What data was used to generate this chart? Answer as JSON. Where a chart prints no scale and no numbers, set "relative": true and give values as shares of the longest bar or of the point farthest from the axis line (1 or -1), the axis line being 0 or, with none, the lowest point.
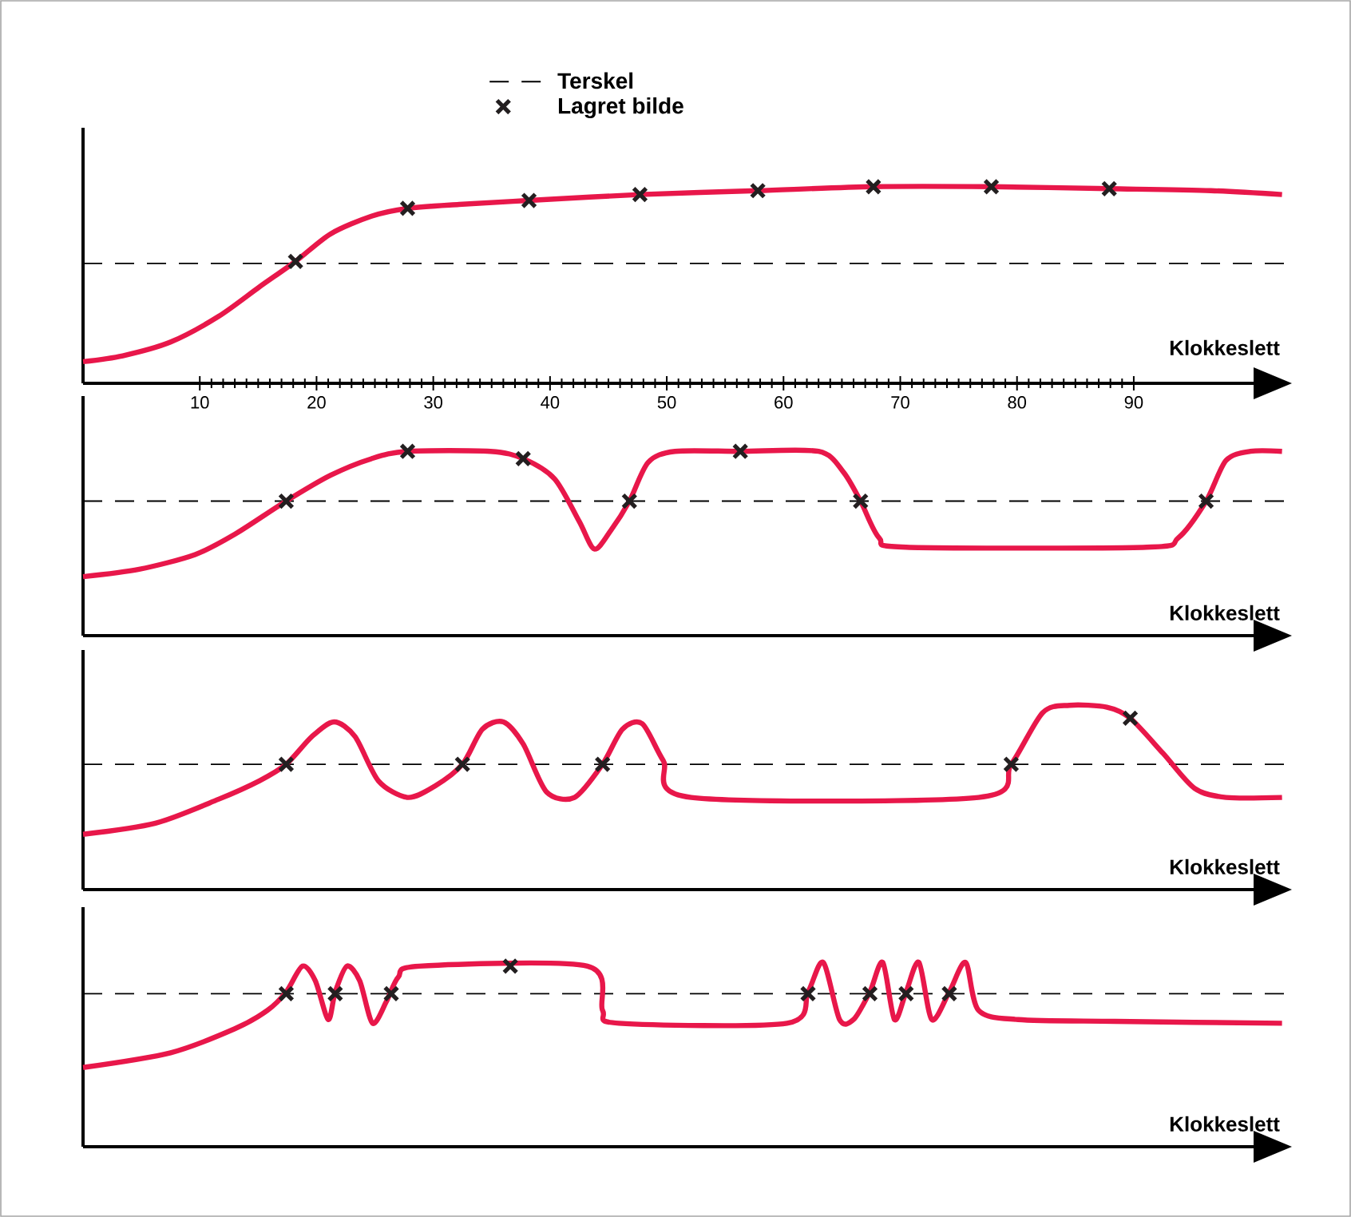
{
  "chart_data": [
    {
      "type": "line",
      "relative": true,
      "xlabel": "Klokkeslett",
      "xlim": [
        0,
        103
      ],
      "xticks": [
        10,
        20,
        30,
        40,
        50,
        60,
        70,
        80,
        90
      ],
      "tick_labels": "x",
      "legend": "top",
      "ref_lines": [
        {
          "axis": "y",
          "value": 0.61,
          "label": "Terskel",
          "line_style": "dashed",
          "color": "#000000"
        }
      ],
      "series": [
        {
          "color": "#e8174a",
          "x": [
            0,
            3.4,
            7.5,
            11.6,
            15.1,
            18.2,
            21.2,
            24.7,
            27.8,
            32.2,
            38.2,
            47.7,
            57.8,
            67.7,
            77.8,
            87.9,
            96.6,
            102.7
          ],
          "values": [
            0.11,
            0.14,
            0.21,
            0.34,
            0.49,
            0.62,
            0.76,
            0.85,
            0.89,
            0.91,
            0.93,
            0.96,
            0.98,
            1.0,
            1.0,
            0.99,
            0.98,
            0.96
          ]
        },
        {
          "type": "scatter",
          "name": "Lagret bilde",
          "color": "#231f20",
          "marker": "cross",
          "x": [
            18.2,
            27.8,
            38.2,
            47.7,
            57.8,
            67.7,
            77.8,
            87.9
          ],
          "values": [
            0.62,
            0.89,
            0.93,
            0.96,
            0.98,
            1.0,
            1.0,
            0.99
          ]
        }
      ]
    },
    {
      "type": "line",
      "relative": true,
      "xlabel": "Klokkeslett",
      "xlim": [
        0,
        103
      ],
      "tick_labels": false,
      "ref_lines": [
        {
          "axis": "y",
          "value": 0.73,
          "line_style": "dashed",
          "color": "#000000"
        }
      ],
      "series": [
        {
          "color": "#e8174a",
          "x": [
            0,
            4.8,
            9.6,
            13.0,
            17.4,
            21.2,
            24.7,
            27.8,
            34.9,
            37.7,
            40.4,
            42.5,
            43.8,
            45.2,
            46.8,
            48.4,
            50.7,
            56.3,
            63.0,
            65.1,
            66.6,
            68.2,
            70.5,
            91.1,
            93.8,
            96.2,
            97.9,
            100.0,
            102.7
          ],
          "values": [
            0.32,
            0.36,
            0.44,
            0.55,
            0.73,
            0.87,
            0.96,
            1.0,
            1.0,
            0.96,
            0.85,
            0.62,
            0.47,
            0.57,
            0.73,
            0.94,
            1.0,
            1.0,
            1.0,
            0.89,
            0.73,
            0.53,
            0.48,
            0.48,
            0.53,
            0.73,
            0.95,
            1.0,
            1.0
          ]
        },
        {
          "type": "scatter",
          "color": "#231f20",
          "marker": "cross",
          "x": [
            17.4,
            27.8,
            37.7,
            46.8,
            56.3,
            66.6,
            96.2
          ],
          "values": [
            0.73,
            1.0,
            0.96,
            0.73,
            1.0,
            0.73,
            0.73
          ]
        }
      ]
    },
    {
      "type": "line",
      "relative": true,
      "xlabel": "Klokkeslett",
      "xlim": [
        0,
        103
      ],
      "tick_labels": false,
      "ref_lines": [
        {
          "axis": "y",
          "value": 0.68,
          "line_style": "dashed",
          "color": "#000000"
        }
      ],
      "series": [
        {
          "color": "#e8174a",
          "x": [
            0,
            6.2,
            11.6,
            15.1,
            17.4,
            19.6,
            21.5,
            23.3,
            25.3,
            27.8,
            30.1,
            32.5,
            34.2,
            36.0,
            37.7,
            39.7,
            42.1,
            44.5,
            46.2,
            47.9,
            49.7,
            52.1,
            76.7,
            79.5,
            82.2,
            84.5,
            87.7,
            89.7,
            92.5,
            95.2,
            97.9,
            102.7
          ],
          "values": [
            0.3,
            0.36,
            0.49,
            0.59,
            0.68,
            0.83,
            0.91,
            0.83,
            0.59,
            0.5,
            0.56,
            0.68,
            0.87,
            0.91,
            0.79,
            0.53,
            0.5,
            0.68,
            0.87,
            0.9,
            0.7,
            0.5,
            0.5,
            0.68,
            0.96,
            1.0,
            0.99,
            0.93,
            0.74,
            0.55,
            0.5,
            0.5
          ]
        },
        {
          "type": "scatter",
          "color": "#231f20",
          "marker": "cross",
          "x": [
            17.4,
            32.5,
            44.5,
            79.5,
            89.7
          ],
          "values": [
            0.68,
            0.68,
            0.68,
            0.68,
            0.93
          ]
        }
      ]
    },
    {
      "type": "line",
      "relative": true,
      "xlabel": "Klokkeslett",
      "xlim": [
        0,
        103
      ],
      "tick_labels": false,
      "ref_lines": [
        {
          "axis": "y",
          "value": 0.83,
          "line_style": "dashed",
          "color": "#000000"
        }
      ],
      "series": [
        {
          "color": "#e8174a",
          "x": [
            0,
            7.5,
            13.0,
            15.8,
            17.4,
            18.8,
            19.9,
            21.0,
            21.6,
            22.6,
            23.7,
            24.8,
            26.0,
            27.0,
            28.8,
            43.2,
            44.5,
            45.9,
            60.3,
            62.1,
            63.4,
            64.8,
            66.0,
            67.4,
            68.5,
            69.5,
            70.5,
            71.6,
            72.7,
            74.2,
            75.6,
            76.7,
            80.1,
            88.4,
            102.7
          ],
          "values": [
            0.43,
            0.51,
            0.64,
            0.74,
            0.84,
            0.98,
            0.9,
            0.69,
            0.84,
            0.98,
            0.9,
            0.67,
            0.79,
            0.92,
            0.98,
            0.98,
            0.74,
            0.67,
            0.67,
            0.84,
            1.0,
            0.69,
            0.69,
            0.84,
            1.0,
            0.69,
            0.84,
            1.0,
            0.69,
            0.84,
            1.0,
            0.74,
            0.69,
            0.68,
            0.67
          ]
        },
        {
          "type": "scatter",
          "color": "#231f20",
          "marker": "cross",
          "x": [
            17.4,
            21.6,
            26.4,
            36.6,
            62.1,
            67.4,
            70.5,
            74.2
          ],
          "values": [
            0.83,
            0.83,
            0.83,
            0.98,
            0.83,
            0.83,
            0.83,
            0.83
          ]
        }
      ]
    }
  ]
}
